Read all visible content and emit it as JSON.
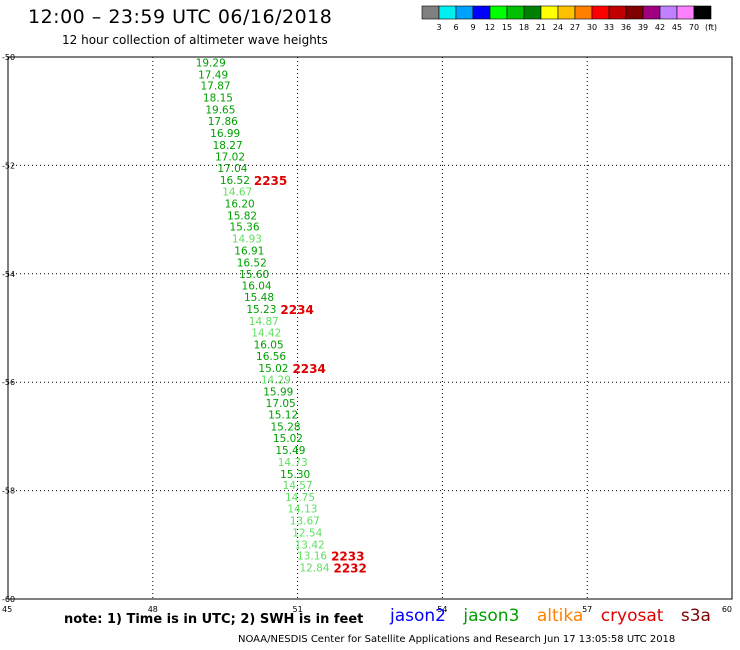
{
  "header": {
    "title": "12:00 – 23:59 UTC 06/16/2018",
    "subtitle": "12 hour collection of altimeter wave heights"
  },
  "legend_scale": {
    "colors": [
      "#808080",
      "#00f0f0",
      "#00a0ff",
      "#0000ff",
      "#00ff00",
      "#00c000",
      "#008000",
      "#ffff00",
      "#ffc000",
      "#ff8000",
      "#ff0000",
      "#c00000",
      "#800000",
      "#a00080",
      "#c080ff",
      "#ff80ff",
      "#000000"
    ],
    "labels": [
      "3",
      "6",
      "9",
      "12",
      "15",
      "18",
      "21",
      "24",
      "27",
      "30",
      "33",
      "36",
      "39",
      "42",
      "45",
      "70",
      "(ft)"
    ]
  },
  "chart_data": {
    "type": "scatter",
    "title": "12:00 – 23:59 UTC 06/16/2018",
    "subtitle": "12 hour collection of altimeter wave heights",
    "x_ticks": [
      "45",
      "48",
      "51",
      "54",
      "57",
      "60"
    ],
    "y_ticks": [
      "-50",
      "-52",
      "-54",
      "-56",
      "-58",
      "-60"
    ],
    "xlim": [
      45,
      60
    ],
    "ylim": [
      -60,
      -50
    ],
    "grid": true,
    "points": [
      {
        "lon": 49.2,
        "lat": -50.1,
        "label": "19.29",
        "color": "#00a000"
      },
      {
        "lon": 49.25,
        "lat": -50.32,
        "label": "17.49",
        "color": "#00a000"
      },
      {
        "lon": 49.3,
        "lat": -50.53,
        "label": "17.87",
        "color": "#00a000"
      },
      {
        "lon": 49.35,
        "lat": -50.75,
        "label": "18.15",
        "color": "#00a000"
      },
      {
        "lon": 49.4,
        "lat": -50.97,
        "label": "19.65",
        "color": "#00a000"
      },
      {
        "lon": 49.45,
        "lat": -51.18,
        "label": "17.86",
        "color": "#00a000"
      },
      {
        "lon": 49.5,
        "lat": -51.4,
        "label": "16.99",
        "color": "#00a000"
      },
      {
        "lon": 49.55,
        "lat": -51.62,
        "label": "18.27",
        "color": "#00a000"
      },
      {
        "lon": 49.6,
        "lat": -51.84,
        "label": "17.02",
        "color": "#00a000"
      },
      {
        "lon": 49.65,
        "lat": -52.05,
        "label": "17.04",
        "color": "#00a000"
      },
      {
        "lon": 49.7,
        "lat": -52.27,
        "label": "16.52",
        "color": "#00a000"
      },
      {
        "lon": 49.75,
        "lat": -52.48,
        "label": "14.67",
        "color": "#60e060"
      },
      {
        "lon": 49.8,
        "lat": -52.7,
        "label": "16.20",
        "color": "#00a000"
      },
      {
        "lon": 49.85,
        "lat": -52.92,
        "label": "15.82",
        "color": "#00a000"
      },
      {
        "lon": 49.9,
        "lat": -53.13,
        "label": "15.36",
        "color": "#00a000"
      },
      {
        "lon": 49.95,
        "lat": -53.35,
        "label": "14.93",
        "color": "#60e060"
      },
      {
        "lon": 50.0,
        "lat": -53.57,
        "label": "16.91",
        "color": "#00a000"
      },
      {
        "lon": 50.05,
        "lat": -53.79,
        "label": "16.52",
        "color": "#00a000"
      },
      {
        "lon": 50.1,
        "lat": -54.0,
        "label": "15.60",
        "color": "#00a000"
      },
      {
        "lon": 50.15,
        "lat": -54.22,
        "label": "16.04",
        "color": "#00a000"
      },
      {
        "lon": 50.2,
        "lat": -54.43,
        "label": "15.48",
        "color": "#00a000"
      },
      {
        "lon": 50.25,
        "lat": -54.65,
        "label": "15.23",
        "color": "#00a000"
      },
      {
        "lon": 50.3,
        "lat": -54.87,
        "label": "14.87",
        "color": "#60e060"
      },
      {
        "lon": 50.35,
        "lat": -55.08,
        "label": "14.42",
        "color": "#60e060"
      },
      {
        "lon": 50.4,
        "lat": -55.3,
        "label": "16.05",
        "color": "#00a000"
      },
      {
        "lon": 50.45,
        "lat": -55.52,
        "label": "16.56",
        "color": "#00a000"
      },
      {
        "lon": 50.5,
        "lat": -55.74,
        "label": "15.02",
        "color": "#00a000"
      },
      {
        "lon": 50.55,
        "lat": -55.95,
        "label": "14.29",
        "color": "#60e060"
      },
      {
        "lon": 50.6,
        "lat": -56.17,
        "label": "15.99",
        "color": "#00a000"
      },
      {
        "lon": 50.65,
        "lat": -56.38,
        "label": "17.05",
        "color": "#00a000"
      },
      {
        "lon": 50.7,
        "lat": -56.6,
        "label": "15.12",
        "color": "#00a000"
      },
      {
        "lon": 50.75,
        "lat": -56.82,
        "label": "15.28",
        "color": "#00a000"
      },
      {
        "lon": 50.8,
        "lat": -57.03,
        "label": "15.02",
        "color": "#00a000"
      },
      {
        "lon": 50.85,
        "lat": -57.25,
        "label": "15.49",
        "color": "#00a000"
      },
      {
        "lon": 50.9,
        "lat": -57.47,
        "label": "14.73",
        "color": "#60e060"
      },
      {
        "lon": 50.95,
        "lat": -57.69,
        "label": "15.30",
        "color": "#00a000"
      },
      {
        "lon": 51.0,
        "lat": -57.9,
        "label": "14.57",
        "color": "#60e060"
      },
      {
        "lon": 51.05,
        "lat": -58.12,
        "label": "14.75",
        "color": "#60e060"
      },
      {
        "lon": 51.1,
        "lat": -58.33,
        "label": "14.13",
        "color": "#60e060"
      },
      {
        "lon": 51.15,
        "lat": -58.55,
        "label": "13.67",
        "color": "#60e060"
      },
      {
        "lon": 51.2,
        "lat": -58.77,
        "label": "12.54",
        "color": "#60e060"
      },
      {
        "lon": 51.25,
        "lat": -58.99,
        "label": "13.42",
        "color": "#60e060"
      },
      {
        "lon": 51.3,
        "lat": -59.2,
        "label": "13.16",
        "color": "#60e060"
      },
      {
        "lon": 51.35,
        "lat": -59.42,
        "label": "12.84",
        "color": "#60e060"
      }
    ],
    "time_labels": [
      {
        "label": "2235",
        "near_index": 10,
        "color": "#e00000"
      },
      {
        "label": "2234",
        "near_index": 21,
        "color": "#e00000"
      },
      {
        "label": "2234",
        "near_index": 26,
        "color": "#e00000"
      },
      {
        "label": "2233",
        "near_index": 42,
        "color": "#e00000"
      },
      {
        "label": "2232",
        "near_index": 43,
        "color": "#e00000"
      }
    ]
  },
  "footer": {
    "note": "note: 1) Time is in UTC; 2) SWH is in feet",
    "satellites": [
      {
        "name": "jason2",
        "color": "#0000ff"
      },
      {
        "name": "jason3",
        "color": "#00a000"
      },
      {
        "name": "altika",
        "color": "#ff8000"
      },
      {
        "name": "cryosat",
        "color": "#e00000"
      },
      {
        "name": "s3a",
        "color": "#800000"
      }
    ],
    "credit": "NOAA/NESDIS Center for Satellite Applications and Research    Jun 17 13:05:58 UTC 2018"
  }
}
